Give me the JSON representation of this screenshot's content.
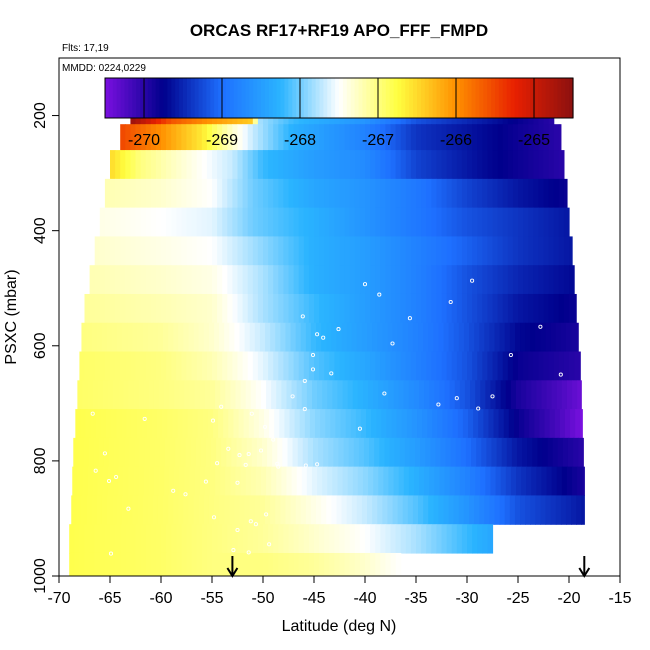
{
  "chart_data": {
    "type": "heatmap",
    "title": "ORCAS RF17+RF19 APO_FFF_FMPD",
    "subtitle_flights": "Flts: 17,19",
    "subtitle_dates": "MMDD: 0224,0229",
    "xlabel": "Latitude (deg N)",
    "ylabel": "PSXC (mbar)",
    "xlim": [
      -70,
      -15
    ],
    "ylim": [
      1000,
      100
    ],
    "x_ticks": [
      -70,
      -65,
      -60,
      -55,
      -50,
      -45,
      -40,
      -35,
      -30,
      -25,
      -20,
      -15
    ],
    "y_ticks": [
      200,
      400,
      600,
      800,
      1000
    ],
    "colorbar": {
      "range": [
        -270.5,
        -264.5
      ],
      "ticks": [
        -270,
        -269,
        -268,
        -267,
        -266,
        -265
      ],
      "colors": [
        "#7a10e0",
        "#00008c",
        "#1e70ff",
        "#2ab4ff",
        "#ffffff",
        "#ffff40",
        "#ff9000",
        "#e82000",
        "#8c1010"
      ]
    },
    "arrows_latitude": [
      -53,
      -18.5
    ],
    "rows": [
      {
        "p": 190,
        "west": -63,
        "east": -21.5,
        "nodes": [
          [
            -63,
            -264.6
          ],
          [
            -59,
            -265.6
          ],
          [
            -55.5,
            -266.0
          ],
          [
            -51,
            -266.4
          ],
          [
            -50.5,
            -267.8
          ],
          [
            -47,
            -268.2
          ],
          [
            -40,
            -268.6
          ],
          [
            -35,
            -269.2
          ],
          [
            -28,
            -269.6
          ],
          [
            -21.5,
            -270.0
          ]
        ]
      },
      {
        "p": 240,
        "west": -64,
        "east": -20.8,
        "nodes": [
          [
            -64,
            -265.5
          ],
          [
            -60,
            -266.0
          ],
          [
            -56,
            -266.6
          ],
          [
            -53,
            -267.3
          ],
          [
            -51,
            -267.7
          ],
          [
            -47,
            -268.3
          ],
          [
            -40,
            -268.8
          ],
          [
            -35,
            -269.4
          ],
          [
            -28,
            -269.7
          ],
          [
            -21,
            -270.0
          ]
        ]
      },
      {
        "p": 285,
        "west": -65,
        "east": -20.5,
        "nodes": [
          [
            -65,
            -266.5
          ],
          [
            -62,
            -267.0
          ],
          [
            -57,
            -267.4
          ],
          [
            -53,
            -267.7
          ],
          [
            -50,
            -268.2
          ],
          [
            -45,
            -268.5
          ],
          [
            -40,
            -268.7
          ],
          [
            -35,
            -269.3
          ],
          [
            -28,
            -269.7
          ],
          [
            -20.5,
            -270.0
          ]
        ]
      },
      {
        "p": 335,
        "west": -65.5,
        "east": -20.2,
        "nodes": [
          [
            -65.5,
            -267.2
          ],
          [
            -60,
            -267.3
          ],
          [
            -55,
            -267.5
          ],
          [
            -51,
            -268.0
          ],
          [
            -45,
            -268.4
          ],
          [
            -40,
            -268.6
          ],
          [
            -35,
            -268.9
          ],
          [
            -30,
            -269.3
          ],
          [
            -25,
            -269.6
          ],
          [
            -20.2,
            -269.8
          ]
        ]
      },
      {
        "p": 385,
        "west": -66,
        "east": -20.0,
        "nodes": [
          [
            -66,
            -267.4
          ],
          [
            -60,
            -267.5
          ],
          [
            -55,
            -267.6
          ],
          [
            -51,
            -268.0
          ],
          [
            -45,
            -268.3
          ],
          [
            -40,
            -268.6
          ],
          [
            -35,
            -268.9
          ],
          [
            -30,
            -269.2
          ],
          [
            -25,
            -269.4
          ],
          [
            -20,
            -269.6
          ]
        ]
      },
      {
        "p": 435,
        "west": -66.5,
        "east": -19.7,
        "nodes": [
          [
            -66.5,
            -267.3
          ],
          [
            -60,
            -267.4
          ],
          [
            -55,
            -267.5
          ],
          [
            -50,
            -267.9
          ],
          [
            -45,
            -268.3
          ],
          [
            -40,
            -268.5
          ],
          [
            -35,
            -268.8
          ],
          [
            -30,
            -269.1
          ],
          [
            -25,
            -269.4
          ],
          [
            -19.7,
            -269.6
          ]
        ]
      },
      {
        "p": 485,
        "west": -67,
        "east": -19.5,
        "nodes": [
          [
            -67,
            -267.2
          ],
          [
            -60,
            -267.3
          ],
          [
            -55,
            -267.4
          ],
          [
            -50,
            -267.8
          ],
          [
            -45,
            -268.3
          ],
          [
            -40,
            -268.5
          ],
          [
            -35,
            -268.8
          ],
          [
            -30,
            -269.2
          ],
          [
            -25,
            -269.5
          ],
          [
            -19.5,
            -269.7
          ]
        ]
      },
      {
        "p": 535,
        "west": -67.5,
        "east": -19.3,
        "nodes": [
          [
            -67.5,
            -267.1
          ],
          [
            -60,
            -267.2
          ],
          [
            -55,
            -267.3
          ],
          [
            -50,
            -267.8
          ],
          [
            -45,
            -268.2
          ],
          [
            -40,
            -268.5
          ],
          [
            -35,
            -268.8
          ],
          [
            -30,
            -269.2
          ],
          [
            -25,
            -269.6
          ],
          [
            -19.3,
            -269.8
          ]
        ]
      },
      {
        "p": 585,
        "west": -67.8,
        "east": -19.1,
        "nodes": [
          [
            -67.8,
            -267.0
          ],
          [
            -60,
            -267.1
          ],
          [
            -55,
            -267.3
          ],
          [
            -50,
            -267.7
          ],
          [
            -45,
            -268.2
          ],
          [
            -40,
            -268.5
          ],
          [
            -35,
            -268.8
          ],
          [
            -30,
            -269.2
          ],
          [
            -25,
            -269.7
          ],
          [
            -19.1,
            -269.9
          ]
        ]
      },
      {
        "p": 635,
        "west": -68,
        "east": -18.9,
        "nodes": [
          [
            -68,
            -266.9
          ],
          [
            -60,
            -267.0
          ],
          [
            -55,
            -267.2
          ],
          [
            -50,
            -267.6
          ],
          [
            -45,
            -268.1
          ],
          [
            -40,
            -268.4
          ],
          [
            -35,
            -268.8
          ],
          [
            -30,
            -269.2
          ],
          [
            -25,
            -269.8
          ],
          [
            -18.9,
            -270.0
          ]
        ]
      },
      {
        "p": 685,
        "west": -68.2,
        "east": -18.8,
        "nodes": [
          [
            -68.2,
            -266.9
          ],
          [
            -60,
            -267.0
          ],
          [
            -55,
            -267.1
          ],
          [
            -50,
            -267.5
          ],
          [
            -45,
            -268.0
          ],
          [
            -40,
            -268.3
          ],
          [
            -35,
            -268.7
          ],
          [
            -30,
            -269.2
          ],
          [
            -25,
            -269.9
          ],
          [
            -21,
            -270.2
          ],
          [
            -18.8,
            -270.4
          ]
        ]
      },
      {
        "p": 735,
        "west": -68.4,
        "east": -18.7,
        "nodes": [
          [
            -68.4,
            -266.8
          ],
          [
            -60,
            -266.9
          ],
          [
            -55,
            -267.0
          ],
          [
            -50,
            -267.4
          ],
          [
            -45,
            -267.9
          ],
          [
            -40,
            -268.2
          ],
          [
            -35,
            -268.6
          ],
          [
            -30,
            -269.1
          ],
          [
            -25,
            -269.8
          ],
          [
            -21,
            -270.2
          ],
          [
            -18.7,
            -270.5
          ]
        ]
      },
      {
        "p": 785,
        "west": -68.6,
        "east": -18.6,
        "nodes": [
          [
            -68.6,
            -266.8
          ],
          [
            -60,
            -266.9
          ],
          [
            -55,
            -267.0
          ],
          [
            -50,
            -267.3
          ],
          [
            -45,
            -267.8
          ],
          [
            -40,
            -268.1
          ],
          [
            -35,
            -268.5
          ],
          [
            -30,
            -269.0
          ],
          [
            -25,
            -269.6
          ],
          [
            -18.6,
            -270.0
          ]
        ]
      },
      {
        "p": 835,
        "west": -68.7,
        "east": -18.5,
        "nodes": [
          [
            -68.7,
            -266.8
          ],
          [
            -60,
            -266.9
          ],
          [
            -55,
            -267.0
          ],
          [
            -50,
            -267.2
          ],
          [
            -45,
            -267.6
          ],
          [
            -40,
            -267.9
          ],
          [
            -35,
            -268.3
          ],
          [
            -30,
            -268.8
          ],
          [
            -25,
            -269.4
          ],
          [
            -18.5,
            -269.9
          ]
        ]
      },
      {
        "p": 885,
        "west": -68.8,
        "east": -18.5,
        "nodes": [
          [
            -68.8,
            -266.8
          ],
          [
            -60,
            -266.9
          ],
          [
            -55,
            -267.0
          ],
          [
            -50,
            -267.1
          ],
          [
            -45,
            -267.4
          ],
          [
            -40,
            -267.7
          ],
          [
            -35,
            -268.1
          ],
          [
            -30,
            -268.6
          ],
          [
            -25,
            -269.2
          ],
          [
            -18.5,
            -269.6
          ]
        ]
      },
      {
        "p": 935,
        "west": -69.0,
        "east": -27.5,
        "nodes": [
          [
            -69,
            -266.8
          ],
          [
            -60,
            -266.9
          ],
          [
            -55,
            -267.0
          ],
          [
            -50,
            -267.1
          ],
          [
            -45,
            -267.3
          ],
          [
            -40,
            -267.5
          ],
          [
            -35,
            -267.8
          ],
          [
            -30,
            -268.2
          ],
          [
            -27.5,
            -268.4
          ]
        ]
      },
      {
        "p": 985,
        "west": -69.0,
        "east": -36.5,
        "nodes": [
          [
            -69,
            -266.8
          ],
          [
            -60,
            -266.9
          ],
          [
            -55,
            -267.0
          ],
          [
            -50,
            -267.0
          ],
          [
            -45,
            -267.1
          ],
          [
            -40,
            -267.3
          ],
          [
            -36.5,
            -267.5
          ]
        ]
      }
    ],
    "samples": [
      {
        "lat": -52.9,
        "p": 955
      },
      {
        "lat": -48.6,
        "p": 805
      },
      {
        "lat": -48.5,
        "p": 810
      },
      {
        "lat": -65.1,
        "p": 835
      },
      {
        "lat": -45.9,
        "p": 710
      },
      {
        "lat": -51.1,
        "p": 718
      },
      {
        "lat": -55.6,
        "p": 836
      },
      {
        "lat": -54.1,
        "p": 706
      },
      {
        "lat": -45.9,
        "p": 661
      },
      {
        "lat": -64.9,
        "p": 961
      },
      {
        "lat": -45.8,
        "p": 808
      },
      {
        "lat": -66.4,
        "p": 817
      },
      {
        "lat": -25.7,
        "p": 616
      },
      {
        "lat": -40.0,
        "p": 493
      },
      {
        "lat": -43.3,
        "p": 648
      },
      {
        "lat": -40.5,
        "p": 744
      },
      {
        "lat": -42.6,
        "p": 571
      },
      {
        "lat": -51.4,
        "p": 959
      },
      {
        "lat": -52.5,
        "p": 838
      },
      {
        "lat": -51.4,
        "p": 788
      },
      {
        "lat": -52.5,
        "p": 920
      },
      {
        "lat": -50.7,
        "p": 910
      },
      {
        "lat": -54.8,
        "p": 898
      },
      {
        "lat": -49.7,
        "p": 893
      },
      {
        "lat": -44.7,
        "p": 580
      },
      {
        "lat": -49.4,
        "p": 945
      },
      {
        "lat": -29.5,
        "p": 487
      },
      {
        "lat": -47.1,
        "p": 688
      },
      {
        "lat": -46.1,
        "p": 549
      },
      {
        "lat": -31.6,
        "p": 524
      },
      {
        "lat": -65.5,
        "p": 787
      },
      {
        "lat": -22.8,
        "p": 567
      },
      {
        "lat": -38.6,
        "p": 511
      },
      {
        "lat": -49.8,
        "p": 741
      },
      {
        "lat": -66.7,
        "p": 718
      },
      {
        "lat": -57.6,
        "p": 858
      },
      {
        "lat": -45.1,
        "p": 616
      },
      {
        "lat": -64.4,
        "p": 828
      },
      {
        "lat": -32.8,
        "p": 702
      },
      {
        "lat": -54.9,
        "p": 730
      },
      {
        "lat": -44.1,
        "p": 586
      },
      {
        "lat": -20.8,
        "p": 650
      },
      {
        "lat": -51.2,
        "p": 905
      },
      {
        "lat": -49.0,
        "p": 763
      },
      {
        "lat": -63.2,
        "p": 883
      },
      {
        "lat": -44.7,
        "p": 806
      },
      {
        "lat": -35.6,
        "p": 552
      },
      {
        "lat": -37.3,
        "p": 596
      },
      {
        "lat": -61.6,
        "p": 727
      },
      {
        "lat": -38.1,
        "p": 683
      },
      {
        "lat": -31.0,
        "p": 691
      },
      {
        "lat": -51.7,
        "p": 807
      },
      {
        "lat": -54.5,
        "p": 804
      },
      {
        "lat": -58.8,
        "p": 852
      },
      {
        "lat": -52.3,
        "p": 790
      },
      {
        "lat": -50.2,
        "p": 782
      },
      {
        "lat": -27.5,
        "p": 688
      },
      {
        "lat": -45.1,
        "p": 641
      },
      {
        "lat": -53.4,
        "p": 779
      },
      {
        "lat": -28.9,
        "p": 709
      }
    ]
  }
}
